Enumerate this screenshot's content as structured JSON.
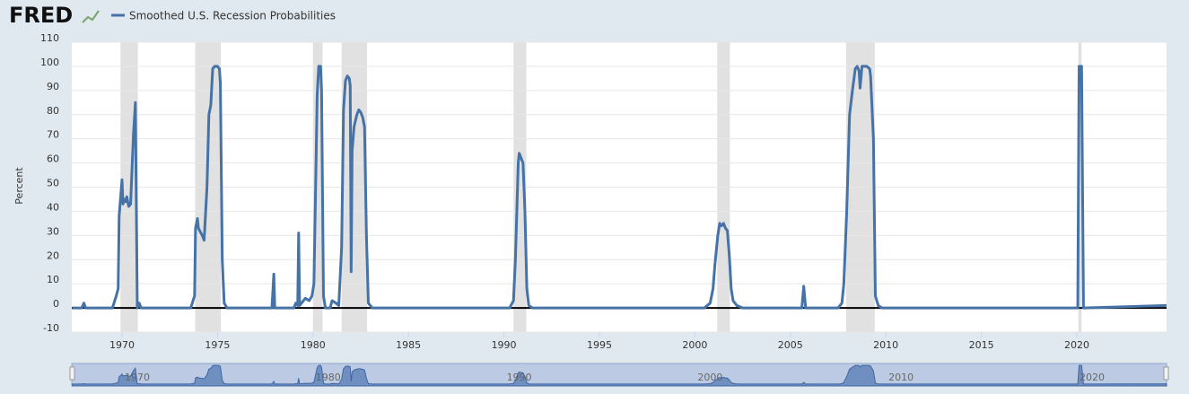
{
  "header": {
    "logo": "FRED"
  },
  "chart_data": {
    "type": "line",
    "y_label": "Percent",
    "series": [
      {
        "name": "Smoothed U.S. Recession Probabilities",
        "color": "#4572a7",
        "values": [
          0,
          0,
          2,
          0,
          0,
          5,
          8,
          38,
          53,
          43,
          45,
          44,
          46,
          42,
          43,
          72,
          85,
          0,
          2,
          0,
          0,
          5,
          33,
          37,
          33,
          30,
          28,
          50,
          80,
          84,
          99,
          100,
          100,
          99,
          93,
          20,
          2,
          0,
          0,
          14,
          0,
          0,
          2,
          1,
          31,
          1,
          3,
          4,
          3,
          5,
          10,
          55,
          88,
          100,
          100,
          90,
          5,
          0,
          0,
          3,
          2,
          1,
          25,
          82,
          94,
          96,
          95,
          92,
          15,
          65,
          75,
          80,
          82,
          81,
          79,
          75,
          30,
          2,
          0,
          0,
          3,
          20,
          60,
          64,
          62,
          60,
          40,
          8,
          1,
          0,
          0,
          2,
          8,
          18,
          30,
          35,
          34,
          35,
          33,
          32,
          22,
          8,
          3,
          1,
          0,
          0,
          9,
          0,
          0,
          2,
          10,
          40,
          80,
          90,
          99,
          100,
          98,
          91,
          100,
          100,
          100,
          99,
          96,
          70,
          5,
          1,
          0,
          0,
          100,
          100,
          0,
          1
        ]
      }
    ],
    "x": [
      1967.4,
      1967.9,
      1968.0,
      1968.1,
      1969.5,
      1969.7,
      1969.8,
      1969.85,
      1970.0,
      1970.05,
      1970.15,
      1970.2,
      1970.25,
      1970.35,
      1970.45,
      1970.6,
      1970.7,
      1970.8,
      1970.9,
      1971.0,
      1973.6,
      1973.8,
      1973.85,
      1973.95,
      1974.0,
      1974.2,
      1974.3,
      1974.45,
      1974.55,
      1974.65,
      1974.75,
      1974.85,
      1975.0,
      1975.1,
      1975.15,
      1975.25,
      1975.35,
      1975.5,
      1977.85,
      1977.95,
      1978.0,
      1979.0,
      1979.1,
      1979.2,
      1979.25,
      1979.3,
      1979.5,
      1979.6,
      1979.8,
      1979.95,
      1980.05,
      1980.15,
      1980.22,
      1980.3,
      1980.4,
      1980.45,
      1980.55,
      1980.65,
      1980.9,
      1981.0,
      1981.2,
      1981.35,
      1981.5,
      1981.6,
      1981.7,
      1981.8,
      1981.9,
      1981.95,
      1982.0,
      1982.05,
      1982.15,
      1982.3,
      1982.4,
      1982.5,
      1982.6,
      1982.7,
      1982.8,
      1982.9,
      1983.1,
      1990.3,
      1990.5,
      1990.6,
      1990.75,
      1990.8,
      1990.9,
      1991.0,
      1991.1,
      1991.2,
      1991.3,
      1991.5,
      2000.5,
      2000.8,
      2000.95,
      2001.05,
      2001.2,
      2001.3,
      2001.4,
      2001.5,
      2001.6,
      2001.7,
      2001.8,
      2001.9,
      2002.0,
      2002.2,
      2002.5,
      2005.6,
      2005.7,
      2005.8,
      2007.5,
      2007.7,
      2007.8,
      2007.95,
      2008.1,
      2008.25,
      2008.4,
      2008.5,
      2008.6,
      2008.65,
      2008.75,
      2008.9,
      2009.0,
      2009.15,
      2009.2,
      2009.35,
      2009.45,
      2009.6,
      2009.8,
      2020.05,
      2020.12,
      2020.25,
      2020.35,
      2024.7
    ],
    "recessions": [
      [
        1969.92,
        1970.83
      ],
      [
        1973.83,
        1975.17
      ],
      [
        1980.0,
        1980.5
      ],
      [
        1981.5,
        1982.83
      ],
      [
        1990.5,
        1991.17
      ],
      [
        2001.17,
        2001.83
      ],
      [
        2007.92,
        2009.42
      ],
      [
        2020.08,
        2020.25
      ]
    ],
    "xlim": [
      1967.37,
      2024.7
    ],
    "xticks": [
      1970,
      1975,
      1980,
      1985,
      1990,
      1995,
      2000,
      2005,
      2010,
      2015,
      2020
    ],
    "ylim": [
      -10,
      110
    ],
    "yticks": [
      -10,
      0,
      10,
      20,
      30,
      40,
      50,
      60,
      70,
      80,
      90,
      100,
      110
    ],
    "grid": true,
    "navigator_ticks": [
      1970,
      1980,
      1990,
      2000,
      2010,
      2020
    ]
  }
}
